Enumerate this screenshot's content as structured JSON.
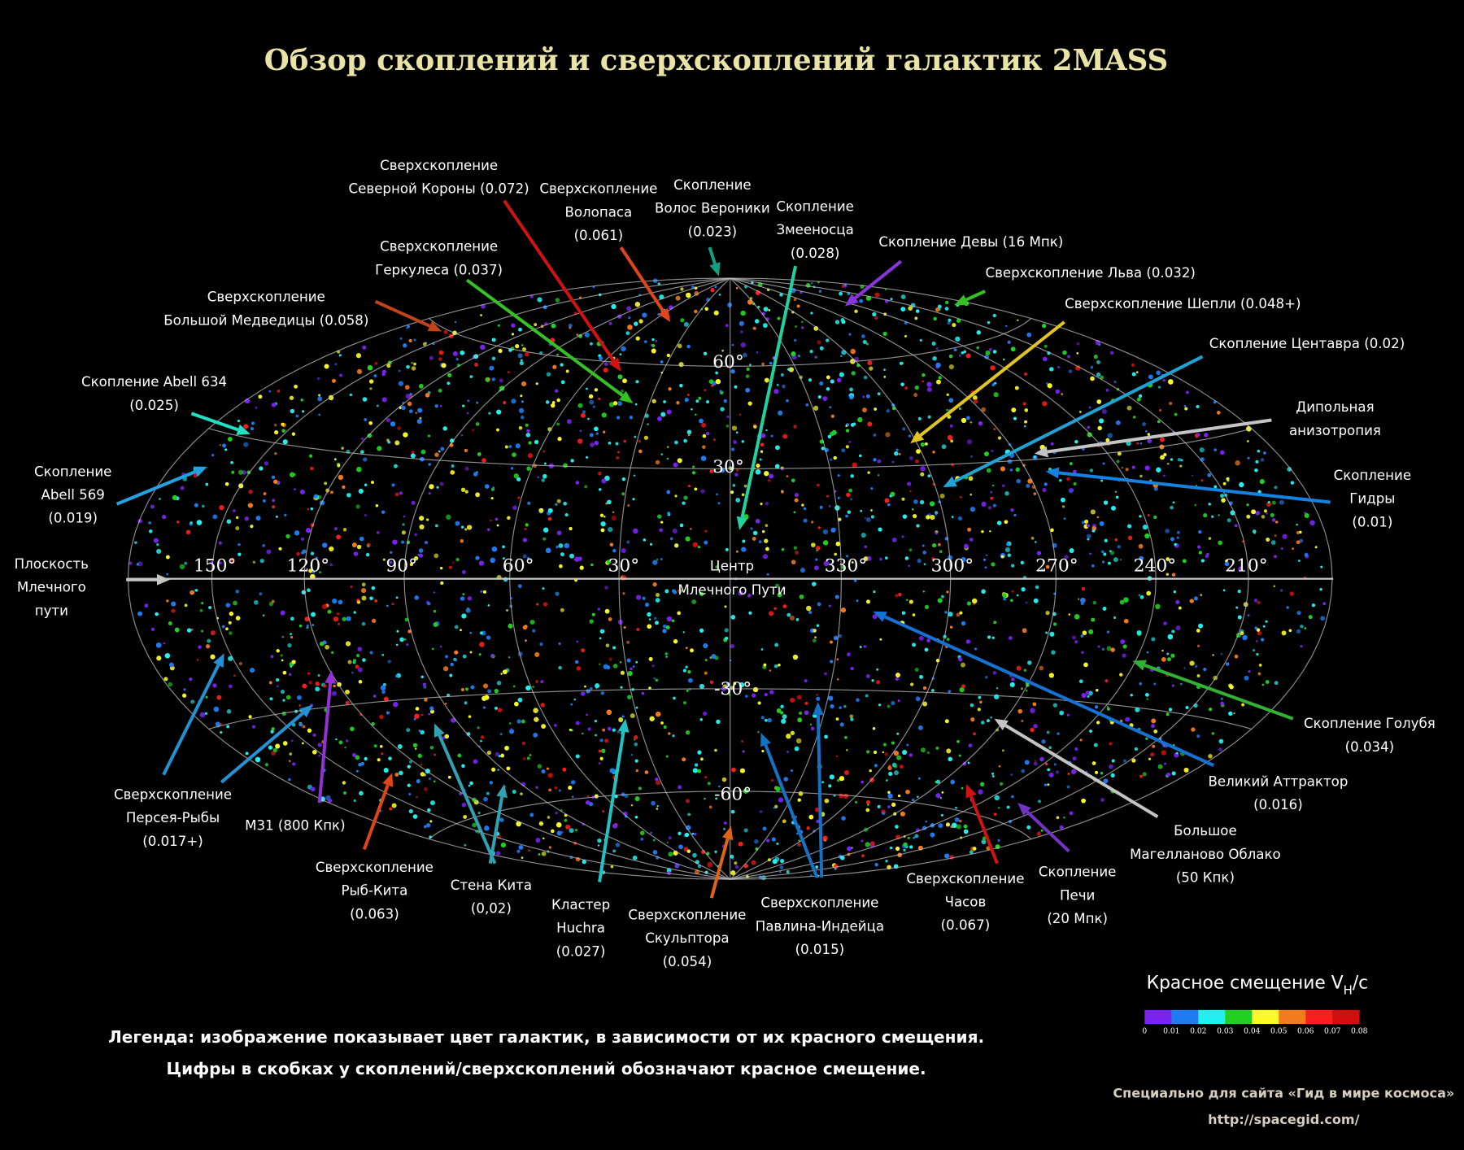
{
  "title": "Обзор скоплений и сверхскоплений галактик 2MASS",
  "map": {
    "center_label": [
      "Центр",
      "Млечного Пути"
    ],
    "longitude_labels": [
      "150°",
      "120°",
      "90°",
      "60°",
      "30°",
      "330°",
      "300°",
      "270°",
      "240°",
      "210°"
    ],
    "latitude_labels": [
      "60°",
      "30°",
      "-30°",
      "-60°"
    ],
    "galactic_plane_color": "#c8c8c8",
    "grid_color": "#bdbdbd"
  },
  "annotations": [
    {
      "lines": [
        "Сверхскопление",
        "Северной Короны (0.072)"
      ],
      "color": "#d01212"
    },
    {
      "lines": [
        "Сверхскопление",
        "Волопаса",
        "(0.061)"
      ],
      "color": "#e04418"
    },
    {
      "lines": [
        "Скопление",
        "Волос Вероники",
        "(0.023)"
      ],
      "color": "#14a080"
    },
    {
      "lines": [
        "Скопление",
        "Змееносца",
        "(0.028)"
      ],
      "color": "#22d0a0"
    },
    {
      "lines": [
        "Скопление Девы (16 Мпк)"
      ],
      "color": "#8a34e0"
    },
    {
      "lines": [
        "Сверхскопление Льва (0.032)"
      ],
      "color": "#34c222"
    },
    {
      "lines": [
        "Сверхскопление Шепли (0.048+)"
      ],
      "color": "#e0c422"
    },
    {
      "lines": [
        "Скопление Центавра (0.02)"
      ],
      "color": "#22a2d4"
    },
    {
      "lines": [
        "Дипольная",
        "анизотропия"
      ],
      "color": "#c4c4c4"
    },
    {
      "lines": [
        "Скопление",
        "Гидры",
        "(0.01)"
      ],
      "color": "#1482e0"
    },
    {
      "lines": [
        "Сверхскопление",
        "Геркулеса (0.037)"
      ],
      "color": "#34c222"
    },
    {
      "lines": [
        "Сверхскопление",
        "Большой Медведицы (0.058)"
      ],
      "color": "#c04418"
    },
    {
      "lines": [
        "Скопление Abell 634",
        "(0.025)"
      ],
      "color": "#22e0c4"
    },
    {
      "lines": [
        "Скопление",
        "Abell 569",
        "(0.019)"
      ],
      "color": "#22a2e0"
    },
    {
      "lines": [
        "Плоскость",
        "Млечного",
        "пути"
      ],
      "color": "#c4c4c4"
    },
    {
      "lines": [
        "Сверхскопление",
        "Персея-Рыбы",
        "(0.017+)"
      ],
      "color": "#2292d4"
    },
    {
      "lines": [
        "M31 (800 Кпк)"
      ],
      "color": "#9232d4"
    },
    {
      "lines": [
        "Сверхскопление",
        "Рыб-Кита",
        "(0.063)"
      ],
      "color": "#e04418"
    },
    {
      "lines": [
        "Стена Кита",
        "(0,02)"
      ],
      "color": "#32a2b2"
    },
    {
      "lines": [
        "Кластер",
        "Huchra",
        "(0.027)"
      ],
      "color": "#22c2c2"
    },
    {
      "lines": [
        "Сверхскопление",
        "Скульптора",
        "(0.054)"
      ],
      "color": "#e06418"
    },
    {
      "lines": [
        "Сверхскопление",
        "Павлина-Индейца",
        "(0.015)"
      ],
      "color": "#1472c4"
    },
    {
      "lines": [
        "Сверхскопление",
        "Часов",
        "(0.067)"
      ],
      "color": "#d01212"
    },
    {
      "lines": [
        "Скопление",
        "Печи",
        "(20 Мпк)"
      ],
      "color": "#7232c4"
    },
    {
      "lines": [
        "Большое",
        "Магелланово Облако",
        "(50 Кпк)"
      ],
      "color": "#c4c4c4"
    },
    {
      "lines": [
        "Великий Аттрактор",
        "(0.016)"
      ],
      "color": "#1472d4"
    },
    {
      "lines": [
        "Скопление Голубя",
        "(0.034)"
      ],
      "color": "#32b232"
    }
  ],
  "legend": {
    "lines": [
      "Легенда: изображение показывает цвет галактик, в зависимости от их красного смещения.",
      "Цифры в скобках у скоплений/сверхскоплений обозначают красное смещение."
    ]
  },
  "colorbar": {
    "title": "Красное смещение V",
    "subscript": "H",
    "suffix": "/c",
    "ticks": [
      "0",
      "0.01",
      "0.02",
      "0.03",
      "0.04",
      "0.05",
      "0.06",
      "0.07",
      "0.08"
    ],
    "colors": [
      "#7a22f0",
      "#1e7cf0",
      "#22f0f0",
      "#22d022",
      "#fafa2a",
      "#f47a1e",
      "#fa1e1e",
      "#d00e0e"
    ]
  },
  "credits": [
    "Специально для сайта «Гид в мире космоса»",
    "http://spacegid.com/"
  ]
}
